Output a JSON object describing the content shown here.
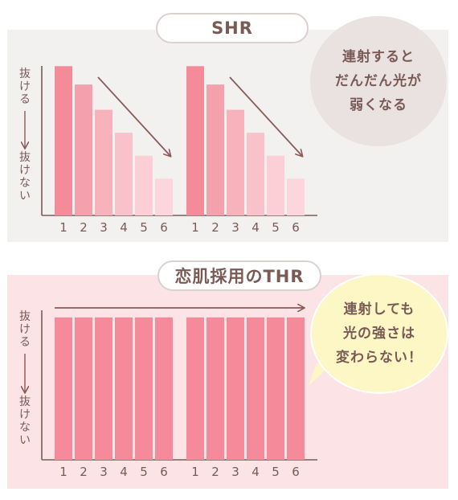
{
  "chart_data": [
    {
      "type": "bar",
      "title": "SHR",
      "ylabel_top": "抜ける",
      "ylabel_bottom": "抜けない",
      "annotation": [
        "連射すると",
        "だんだん光が",
        "弱くなる"
      ],
      "groups": [
        {
          "categories": [
            "1",
            "2",
            "3",
            "4",
            "5",
            "6"
          ],
          "values": [
            6.5,
            5.7,
            4.6,
            3.6,
            2.6,
            1.6
          ]
        },
        {
          "categories": [
            "1",
            "2",
            "3",
            "4",
            "5",
            "6"
          ],
          "values": [
            6.5,
            5.7,
            4.6,
            3.6,
            2.6,
            1.6
          ]
        }
      ],
      "colors": [
        "#f38b99",
        "#f5a1ad",
        "#f7b2bc",
        "#f9c1c9",
        "#fbcfd5",
        "#fcd6dc"
      ],
      "trend": "down",
      "ylim": [
        0,
        7
      ]
    },
    {
      "type": "bar",
      "title": "恋肌採用のTHR",
      "ylabel_top": "抜ける",
      "ylabel_bottom": "抜けない",
      "annotation": [
        "連射しても",
        "光の強さは",
        "変わらない！"
      ],
      "groups": [
        {
          "categories": [
            "1",
            "2",
            "3",
            "4",
            "5",
            "6"
          ],
          "values": [
            6.2,
            6.2,
            6.2,
            6.2,
            6.2,
            6.2
          ]
        },
        {
          "categories": [
            "1",
            "2",
            "3",
            "4",
            "5",
            "6"
          ],
          "values": [
            6.2,
            6.2,
            6.2,
            6.2,
            6.2,
            6.2
          ]
        }
      ],
      "colors": [
        "#f58a9a"
      ],
      "trend": "flat",
      "ylim": [
        0,
        7
      ]
    }
  ],
  "theme": {
    "text": "#7a5a55",
    "axis": "#7a5a55",
    "arrow": "#8a5a58",
    "shr_panel": "#f3f0f0",
    "thr_panel": "#fbe3e6"
  }
}
